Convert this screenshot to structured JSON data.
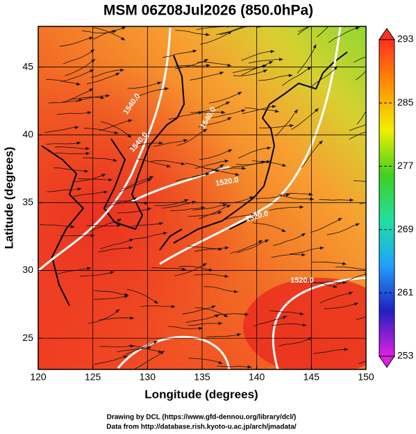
{
  "chart_data": {
    "type": "map",
    "title": "MSM 06Z08Jul2026 (850.0hPa)",
    "xlabel": "Longitude (degrees)",
    "ylabel": "Latitude  (degrees)",
    "xlim": [
      120,
      150
    ],
    "ylim": [
      22.7,
      48
    ],
    "xticks": [
      120,
      125,
      130,
      135,
      140,
      145,
      150
    ],
    "yticks": [
      25,
      30,
      35,
      40,
      45
    ],
    "grid": true,
    "colorbar": {
      "lim": [
        253,
        293
      ],
      "ticks": [
        253,
        261,
        269,
        277,
        285,
        293
      ],
      "colors": [
        "#e020e0",
        "#2020c0",
        "#20a0ff",
        "#20e0a0",
        "#40d020",
        "#f0f000",
        "#ff9000",
        "#ff3020"
      ]
    },
    "contour_labels": [
      "1540.0",
      "1540.0",
      "1540.0",
      "1520.0",
      "1520.0",
      "1520.0"
    ],
    "credits": [
      "Drawing by DCL (https://www.gfd-dennou.org/library/dcl/)",
      "Data from http://database.rish.kyoto-u.ac.jp/arch/jmadata/"
    ]
  }
}
